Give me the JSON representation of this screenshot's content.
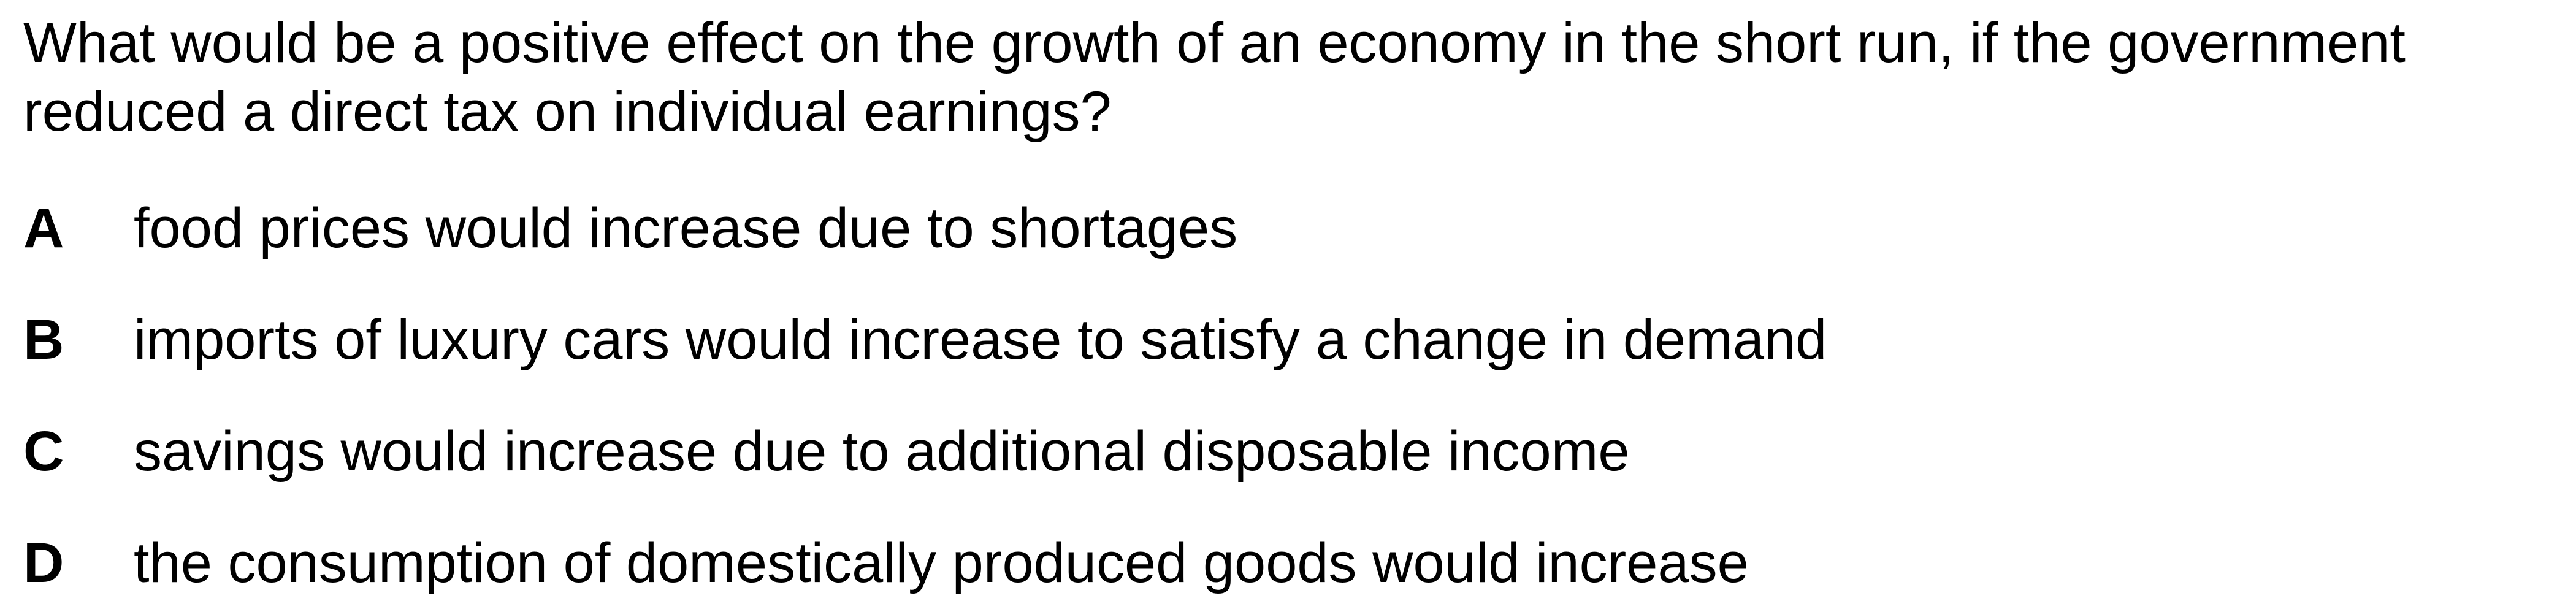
{
  "question": {
    "text": "What would be a positive effect on the growth of an economy in the short run, if the government reduced a direct tax on individual earnings?"
  },
  "options": [
    {
      "letter": "A",
      "text": "food prices would increase due to shortages"
    },
    {
      "letter": "B",
      "text": "imports of luxury cars would increase to satisfy a change in demand"
    },
    {
      "letter": "C",
      "text": "savings would increase due to additional disposable income"
    },
    {
      "letter": "D",
      "text": "the consumption of domestically produced goods would increase"
    }
  ]
}
